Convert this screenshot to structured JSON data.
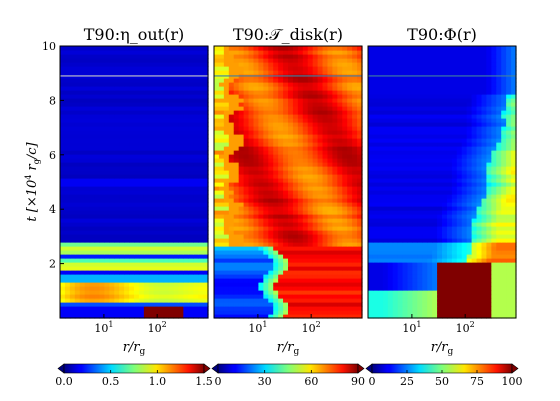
{
  "chart_data": [
    {
      "type": "heatmap",
      "title": "T90:η_out(r)",
      "quantity": "eta_out",
      "xlabel": "r/r_g",
      "ylabel": "t [×10^4 r_g/c]",
      "x_scale": "log",
      "xlim": [
        1.5,
        900
      ],
      "ylim": [
        0,
        10
      ],
      "x_tick_labels": [
        "10^1",
        "10^2"
      ],
      "y_tick_labels": [
        "2",
        "4",
        "6",
        "8",
        "10"
      ],
      "colorbar": {
        "min": 0.0,
        "max": 1.5,
        "ticks": [
          "0.0",
          "0.5",
          "1.0",
          "1.5"
        ],
        "colormap": "jet",
        "extend": "both"
      },
      "features": [
        {
          "t_range": [
            0.0,
            0.4
          ],
          "r_range": [
            20,
            80
          ],
          "value": 1.5
        },
        {
          "t_range": [
            0.5,
            1.3
          ],
          "r_range": [
            2,
            900
          ],
          "value": 0.9
        },
        {
          "t_range": [
            1.8,
            2.2
          ],
          "r_range": [
            2,
            900
          ],
          "value": 0.8
        },
        {
          "t_range": [
            2.3,
            2.8
          ],
          "r_range": [
            2,
            900
          ],
          "value": 0.6
        },
        {
          "t_range": [
            3.0,
            10.0
          ],
          "r_range": [
            2,
            900
          ],
          "value": 0.05
        }
      ]
    },
    {
      "type": "heatmap",
      "title": "T90:𝒯_disk(r)",
      "quantity": "T_disk",
      "xlabel": "r/r_g",
      "x_scale": "log",
      "xlim": [
        1.5,
        900
      ],
      "ylim": [
        0,
        10
      ],
      "x_tick_labels": [
        "10^1",
        "10^2"
      ],
      "colorbar": {
        "min": 0,
        "max": 90,
        "ticks": [
          "0",
          "30",
          "60",
          "90"
        ],
        "colormap": "jet",
        "extend": "both"
      },
      "features": [
        {
          "t_range": [
            2.5,
            10.0
          ],
          "r_range": [
            2,
            900
          ],
          "value": 75
        },
        {
          "t_range": [
            0.0,
            2.5
          ],
          "r_range": [
            40,
            900
          ],
          "value": 80
        },
        {
          "t_range": [
            0.0,
            2.5
          ],
          "r_range": [
            2,
            30
          ],
          "value": 15
        }
      ]
    },
    {
      "type": "heatmap",
      "title": "T90:Φ(r)",
      "quantity": "Phi",
      "xlabel": "r/r_g",
      "x_scale": "log",
      "xlim": [
        1.5,
        900
      ],
      "ylim": [
        0,
        10
      ],
      "x_tick_labels": [
        "10^1",
        "10^2"
      ],
      "colorbar": {
        "min": 0,
        "max": 100,
        "ticks": [
          "0",
          "25",
          "50",
          "75",
          "100"
        ],
        "colormap": "jet",
        "extend": "both"
      },
      "features": [
        {
          "t_range": [
            0.0,
            2.0
          ],
          "r_range": [
            30,
            300
          ],
          "value": 100
        },
        {
          "t_range": [
            2.0,
            8.0
          ],
          "r_range": [
            100,
            900
          ],
          "value": 40
        },
        {
          "t_range": [
            0.0,
            10.0
          ],
          "r_range": [
            2,
            20
          ],
          "value": 8
        }
      ]
    }
  ]
}
